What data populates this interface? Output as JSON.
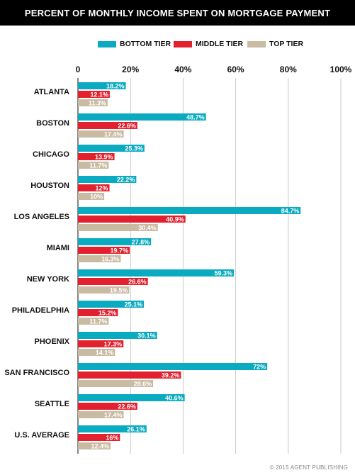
{
  "header": {
    "title": "PERCENT OF MONTHLY INCOME SPENT ON MORTGAGE PAYMENT"
  },
  "footer": {
    "credit": "© 2015 AGENT PUBLISHING"
  },
  "colors": {
    "bottom_tier": "#0aaac0",
    "middle_tier": "#e3202d",
    "top_tier": "#c9bba2",
    "header_bg": "#000000"
  },
  "chart_data": {
    "type": "bar",
    "orientation": "horizontal",
    "title": "PERCENT OF MONTHLY INCOME SPENT ON MORTGAGE PAYMENT",
    "xlim": [
      0,
      100
    ],
    "x_ticks": [
      "0",
      "20%",
      "40%",
      "60%",
      "80%",
      "100%"
    ],
    "x_tick_values": [
      0,
      20,
      40,
      60,
      80,
      100
    ],
    "grid": true,
    "legend_position": "top",
    "categories": [
      "ATLANTA",
      "BOSTON",
      "CHICAGO",
      "HOUSTON",
      "LOS ANGELES",
      "MIAMI",
      "NEW YORK",
      "PHILADELPHIA",
      "PHOENIX",
      "SAN FRANCISCO",
      "SEATTLE",
      "U.S. AVERAGE"
    ],
    "series": [
      {
        "name": "BOTTOM TIER",
        "color": "#0aaac0",
        "values": [
          18.2,
          48.7,
          25.3,
          22.2,
          84.7,
          27.8,
          59.3,
          25.1,
          30.1,
          72,
          40.6,
          26.1
        ],
        "labels": [
          "18.2%",
          "48.7%",
          "25.3%",
          "22.2%",
          "84.7%",
          "27.8%",
          "59.3%",
          "25.1%",
          "30.1%",
          "72%",
          "40.6%",
          "26.1%"
        ]
      },
      {
        "name": "MIDDLE TIER",
        "color": "#e3202d",
        "values": [
          12.1,
          22.6,
          13.9,
          12,
          40.9,
          19.7,
          26.6,
          15.2,
          17.3,
          39.2,
          22.6,
          16
        ],
        "labels": [
          "12.1%",
          "22.6%",
          "13.9%",
          "12%",
          "40.9%",
          "19.7%",
          "26.6%",
          "15.2%",
          "17.3%",
          "39.2%",
          "22.6%",
          "16%"
        ]
      },
      {
        "name": "TOP TIER",
        "color": "#c9bba2",
        "values": [
          11.3,
          17.4,
          11.7,
          10,
          30.4,
          16.3,
          19.5,
          11.7,
          14.1,
          28.6,
          17.4,
          12.4
        ],
        "labels": [
          "11.3%",
          "17.4%",
          "11.7%",
          "10%",
          "30.4%",
          "16.3%",
          "19.5%",
          "11.7%",
          "14.1%",
          "28.6%",
          "17.4%",
          "12.4%"
        ]
      }
    ]
  }
}
